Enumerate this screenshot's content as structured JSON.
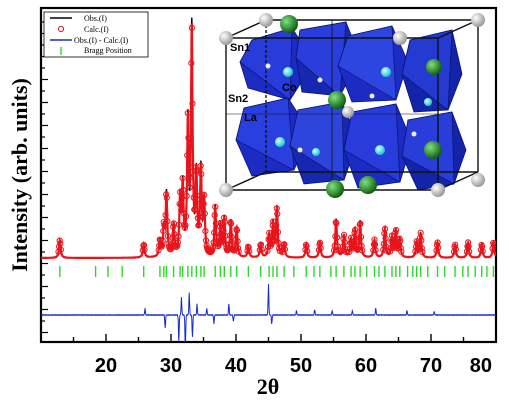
{
  "chart_data": {
    "type": "line",
    "xlabel": "2θ",
    "ylabel": "Intensity (arb. units)",
    "xlim": [
      10,
      80
    ],
    "x_ticks": [
      20,
      30,
      40,
      50,
      60,
      70,
      80
    ],
    "legend_position": "top-left",
    "series": [
      {
        "name": "Obs.(I)",
        "color": "#000000",
        "style": "line"
      },
      {
        "name": "Calc.(I)",
        "color": "#e8141c",
        "style": "open-circle"
      },
      {
        "name": "Obs.(I) - Calc.(I)",
        "color": "#1a2ccf",
        "style": "line"
      },
      {
        "name": "Bragg Position",
        "color": "#2fd62f",
        "style": "tick"
      }
    ],
    "peaks": [
      {
        "x": 12.9,
        "h": 0.08
      },
      {
        "x": 25.8,
        "h": 0.06
      },
      {
        "x": 28.3,
        "h": 0.07
      },
      {
        "x": 28.9,
        "h": 0.12
      },
      {
        "x": 29.3,
        "h": 0.28
      },
      {
        "x": 30.4,
        "h": 0.14
      },
      {
        "x": 31.4,
        "h": 0.24
      },
      {
        "x": 31.8,
        "h": 0.3
      },
      {
        "x": 32.6,
        "h": 0.58
      },
      {
        "x": 33.2,
        "h": 1.0
      },
      {
        "x": 33.9,
        "h": 0.35
      },
      {
        "x": 34.6,
        "h": 0.38
      },
      {
        "x": 35.1,
        "h": 0.24
      },
      {
        "x": 36.8,
        "h": 0.22
      },
      {
        "x": 37.6,
        "h": 0.14
      },
      {
        "x": 38.2,
        "h": 0.17
      },
      {
        "x": 39.2,
        "h": 0.16
      },
      {
        "x": 40.1,
        "h": 0.13
      },
      {
        "x": 41.9,
        "h": 0.05
      },
      {
        "x": 43.8,
        "h": 0.06
      },
      {
        "x": 45.1,
        "h": 0.1
      },
      {
        "x": 45.7,
        "h": 0.15
      },
      {
        "x": 46.3,
        "h": 0.22
      },
      {
        "x": 47.4,
        "h": 0.06
      },
      {
        "x": 50.8,
        "h": 0.06
      },
      {
        "x": 52.9,
        "h": 0.07
      },
      {
        "x": 55.4,
        "h": 0.17
      },
      {
        "x": 56.6,
        "h": 0.1
      },
      {
        "x": 57.7,
        "h": 0.08
      },
      {
        "x": 58.3,
        "h": 0.12
      },
      {
        "x": 59.1,
        "h": 0.16
      },
      {
        "x": 61.3,
        "h": 0.08
      },
      {
        "x": 62.9,
        "h": 0.13
      },
      {
        "x": 64.0,
        "h": 0.09
      },
      {
        "x": 64.6,
        "h": 0.12
      },
      {
        "x": 65.2,
        "h": 0.08
      },
      {
        "x": 67.8,
        "h": 0.07
      },
      {
        "x": 68.4,
        "h": 0.11
      },
      {
        "x": 71.0,
        "h": 0.07
      },
      {
        "x": 73.7,
        "h": 0.06
      },
      {
        "x": 75.7,
        "h": 0.07
      },
      {
        "x": 77.8,
        "h": 0.06
      },
      {
        "x": 79.6,
        "h": 0.07
      }
    ],
    "bragg_positions": [
      12.9,
      18.4,
      20.3,
      22.5,
      25.8,
      28.3,
      28.9,
      29.3,
      30.4,
      31.4,
      31.8,
      32.6,
      33.2,
      33.9,
      34.6,
      35.1,
      36.8,
      37.6,
      38.2,
      39.2,
      40.1,
      41.9,
      43.8,
      45.1,
      45.7,
      46.3,
      47.4,
      48.9,
      50.8,
      52.0,
      52.9,
      54.6,
      55.4,
      56.6,
      57.7,
      58.3,
      59.1,
      60.1,
      61.3,
      62.0,
      62.9,
      64.0,
      64.6,
      65.2,
      66.4,
      67.2,
      67.8,
      68.4,
      69.5,
      71.0,
      72.1,
      73.7,
      74.9,
      75.7,
      76.8,
      77.8,
      78.6,
      79.6
    ],
    "diff_spikes": [
      {
        "x": 26.0,
        "d": 0.3
      },
      {
        "x": 29.1,
        "d": -0.6
      },
      {
        "x": 31.2,
        "d": -1.2
      },
      {
        "x": 31.6,
        "d": 0.8
      },
      {
        "x": 32.2,
        "d": -1.6
      },
      {
        "x": 32.8,
        "d": 1.0
      },
      {
        "x": 33.3,
        "d": -1.0
      },
      {
        "x": 34.0,
        "d": 0.5
      },
      {
        "x": 35.5,
        "d": 0.3
      },
      {
        "x": 36.6,
        "d": -0.4
      },
      {
        "x": 38.9,
        "d": 0.5
      },
      {
        "x": 39.6,
        "d": -0.3
      },
      {
        "x": 45.0,
        "d": 1.4
      },
      {
        "x": 45.5,
        "d": -0.4
      },
      {
        "x": 49.3,
        "d": 0.2
      },
      {
        "x": 52.1,
        "d": 0.25
      },
      {
        "x": 54.8,
        "d": 0.2
      },
      {
        "x": 57.9,
        "d": 0.2
      },
      {
        "x": 61.5,
        "d": 0.3
      },
      {
        "x": 66.3,
        "d": 0.2
      },
      {
        "x": 70.5,
        "d": 0.15
      }
    ]
  },
  "inset": {
    "labels": [
      "Sn1",
      "Sn2",
      "Co",
      "La"
    ],
    "colors": {
      "polyhedra": "#1b2bc4",
      "co_atom": "#2ee6f0",
      "la_atom": "#1f8a1f",
      "sn_atom": "#d9d9d9"
    }
  }
}
